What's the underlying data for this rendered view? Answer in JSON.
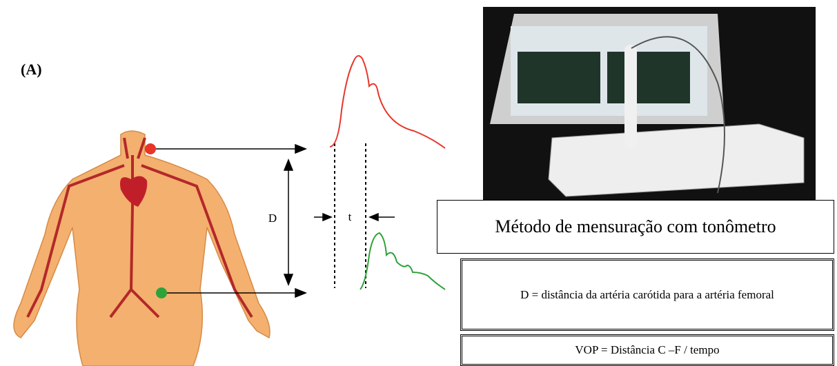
{
  "panel_label": "(A)",
  "diagram": {
    "distance_label": "D",
    "time_label": "t"
  },
  "photo_caption": "Método de mensuração com tonômetro",
  "definitions": [
    "D = distância da artéria carótida para a artéria femoral",
    "VOP = Distância C –F / tempo"
  ]
}
